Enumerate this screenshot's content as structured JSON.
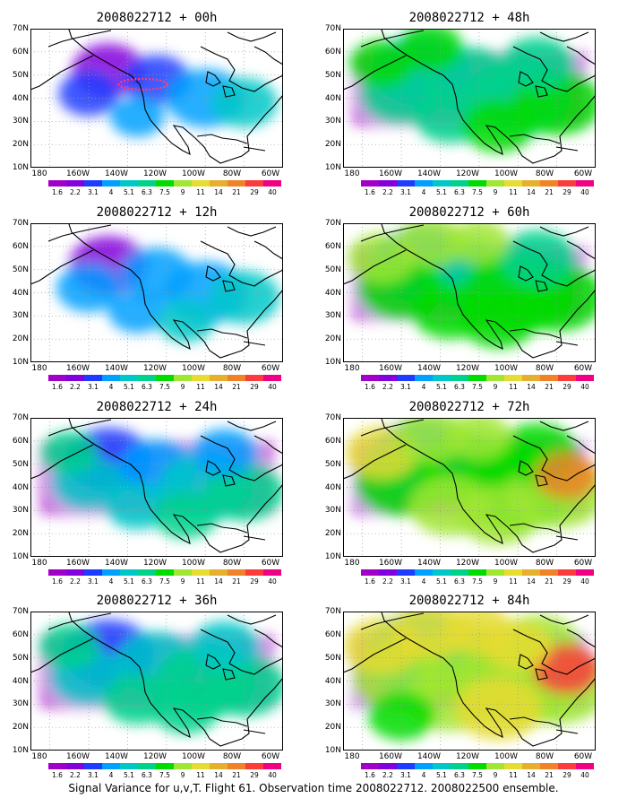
{
  "caption": "Signal Variance for u,v,T. Flight 61. Observation time 2008022712. 2008022500 ensemble.",
  "y_axis_labels": [
    "70N",
    "60N",
    "50N",
    "40N",
    "30N",
    "20N",
    "10N"
  ],
  "x_axis_labels": [
    "180",
    "160W",
    "140W",
    "120W",
    "100W",
    "80W",
    "60W"
  ],
  "colorbar": {
    "levels": [
      "1.6",
      "2.2",
      "3.1",
      "4",
      "5.1",
      "6.3",
      "7.5",
      "9",
      "11",
      "14",
      "21",
      "29",
      "40"
    ],
    "colors": [
      "#a000c8",
      "#8200dc",
      "#1e3cff",
      "#00a0ff",
      "#00c8c8",
      "#00d28c",
      "#00dc00",
      "#a0e632",
      "#e6dc32",
      "#e6af2d",
      "#f08228",
      "#fa3c3c",
      "#f00082"
    ]
  },
  "panels": [
    {
      "title": "2008022712 + 00h",
      "intensity": 0.15
    },
    {
      "title": "2008022712 + 48h",
      "intensity": 0.6
    },
    {
      "title": "2008022712 + 12h",
      "intensity": 0.25
    },
    {
      "title": "2008022712 + 60h",
      "intensity": 0.7
    },
    {
      "title": "2008022712 + 24h",
      "intensity": 0.4
    },
    {
      "title": "2008022712 + 72h",
      "intensity": 0.82
    },
    {
      "title": "2008022712 + 36h",
      "intensity": 0.5
    },
    {
      "title": "2008022712 + 84h",
      "intensity": 0.95
    }
  ],
  "flight_track_color": "#ff3c78"
}
